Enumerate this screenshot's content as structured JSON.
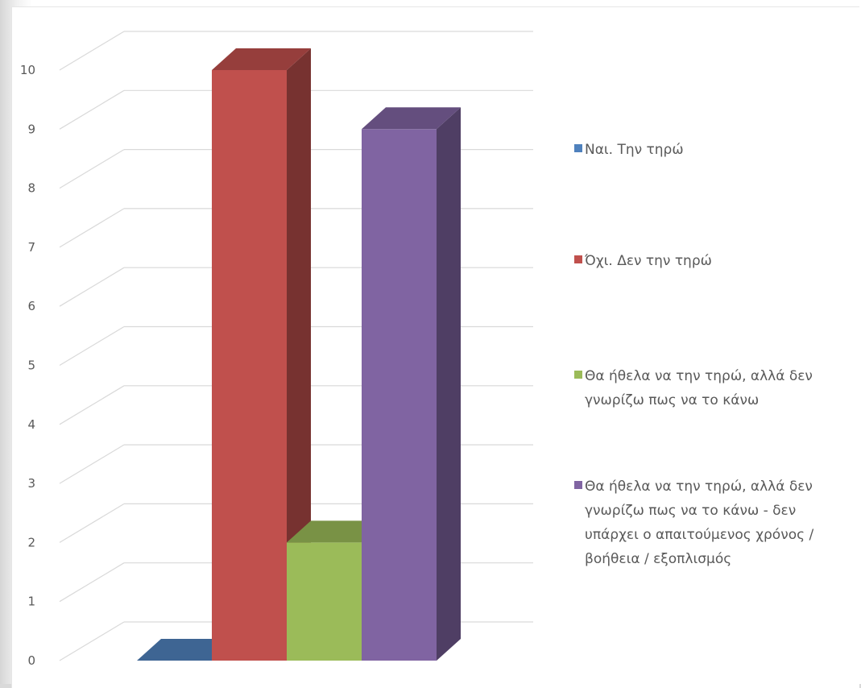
{
  "chart_data": {
    "type": "bar",
    "title": "",
    "xlabel": "",
    "ylabel": "",
    "ylim": [
      0,
      10
    ],
    "yticks": [
      "0",
      "1",
      "2",
      "3",
      "4",
      "5",
      "6",
      "7",
      "8",
      "9",
      "10"
    ],
    "grid": true,
    "three_d": true,
    "legend_position": "right",
    "series": [
      {
        "name": "Ναι. Την τηρώ",
        "value": 0,
        "color": "#4f81bd",
        "legend_lines": [
          "Ναι. Την τηρώ"
        ]
      },
      {
        "name": "Όχι. Δεν την τηρώ",
        "value": 10,
        "color": "#c0504d",
        "legend_lines": [
          "Όχι. Δεν την τηρώ"
        ]
      },
      {
        "name": "Θα ήθελα να την τηρώ, αλλά δεν γνωρίζω πως να το κάνω",
        "value": 2,
        "color": "#9bbb59",
        "legend_lines": [
          "Θα ήθελα να την τηρώ, αλλά δεν",
          "γνωρίζω πως να το κάνω"
        ]
      },
      {
        "name": "Θα ήθελα να την τηρώ, αλλά δεν γνωρίζω πως να το κάνω - δεν υπάρχει ο απαιτούμενος χρόνος / βοήθεια / εξοπλισμός",
        "value": 9,
        "color": "#8064a2",
        "legend_lines": [
          "Θα ήθελα να την τηρώ, αλλά δεν",
          "γνωρίζω πως να το κάνω - δεν",
          "υπάρχει ο απαιτούμενος χρόνος /",
          "βοήθεια / εξοπλισμός"
        ]
      }
    ]
  }
}
